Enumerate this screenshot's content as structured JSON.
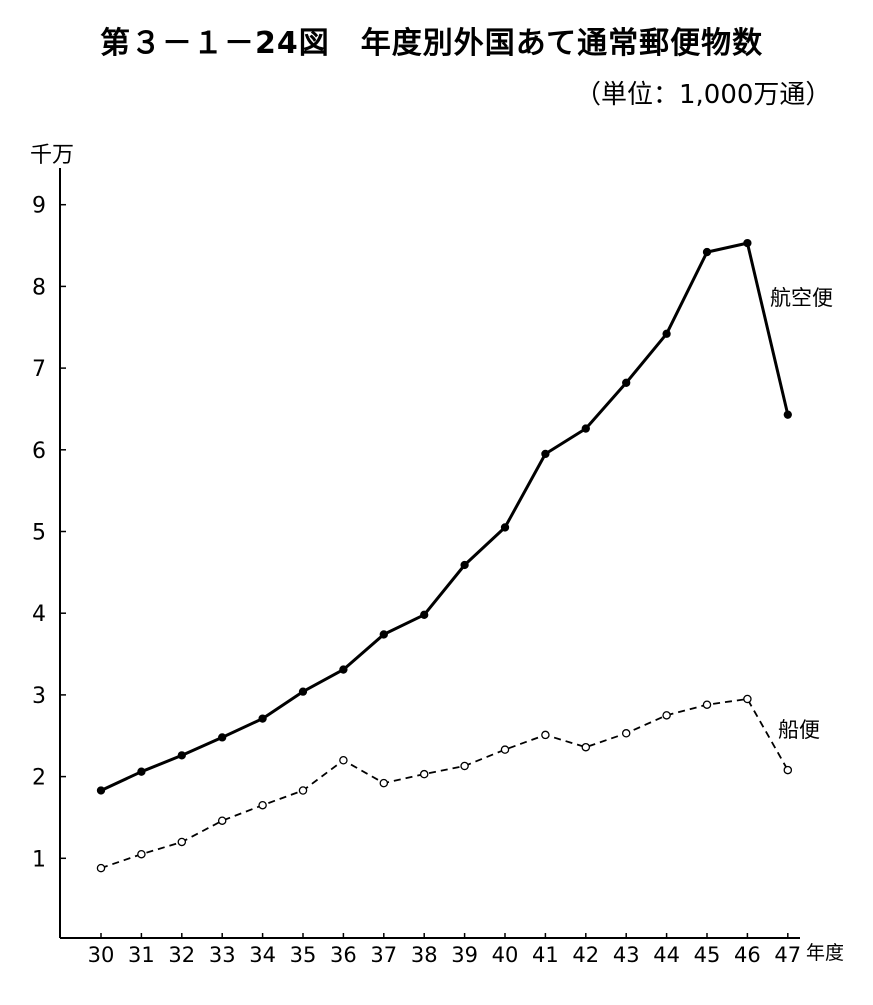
{
  "chart_data": {
    "type": "line",
    "title": "第３－１－24図　年度別外国あて通常郵便物数",
    "subtitle": "（単位：1,000万通）",
    "ylabel": "千万",
    "xlabel": "年度",
    "categories": [
      "30",
      "31",
      "32",
      "33",
      "34",
      "35",
      "36",
      "37",
      "38",
      "39",
      "40",
      "41",
      "42",
      "43",
      "44",
      "45",
      "46",
      "47"
    ],
    "ylim": [
      0,
      9.5
    ],
    "yticks": [
      1,
      2,
      3,
      4,
      5,
      6,
      7,
      8,
      9
    ],
    "grid": false,
    "legend": "inline-right",
    "series": [
      {
        "name": "航空便",
        "style": "solid",
        "marker": "filled",
        "values": [
          1.83,
          2.06,
          2.26,
          2.48,
          2.71,
          3.04,
          3.31,
          3.74,
          3.98,
          4.59,
          5.05,
          5.95,
          6.26,
          6.82,
          7.42,
          8.42,
          8.53,
          6.43
        ]
      },
      {
        "name": "船便",
        "style": "dashed",
        "marker": "hollow",
        "values": [
          0.88,
          1.05,
          1.2,
          1.46,
          1.65,
          1.83,
          2.2,
          1.92,
          2.03,
          2.13,
          2.33,
          2.51,
          2.36,
          2.53,
          2.75,
          2.88,
          2.95,
          2.08
        ]
      }
    ]
  }
}
